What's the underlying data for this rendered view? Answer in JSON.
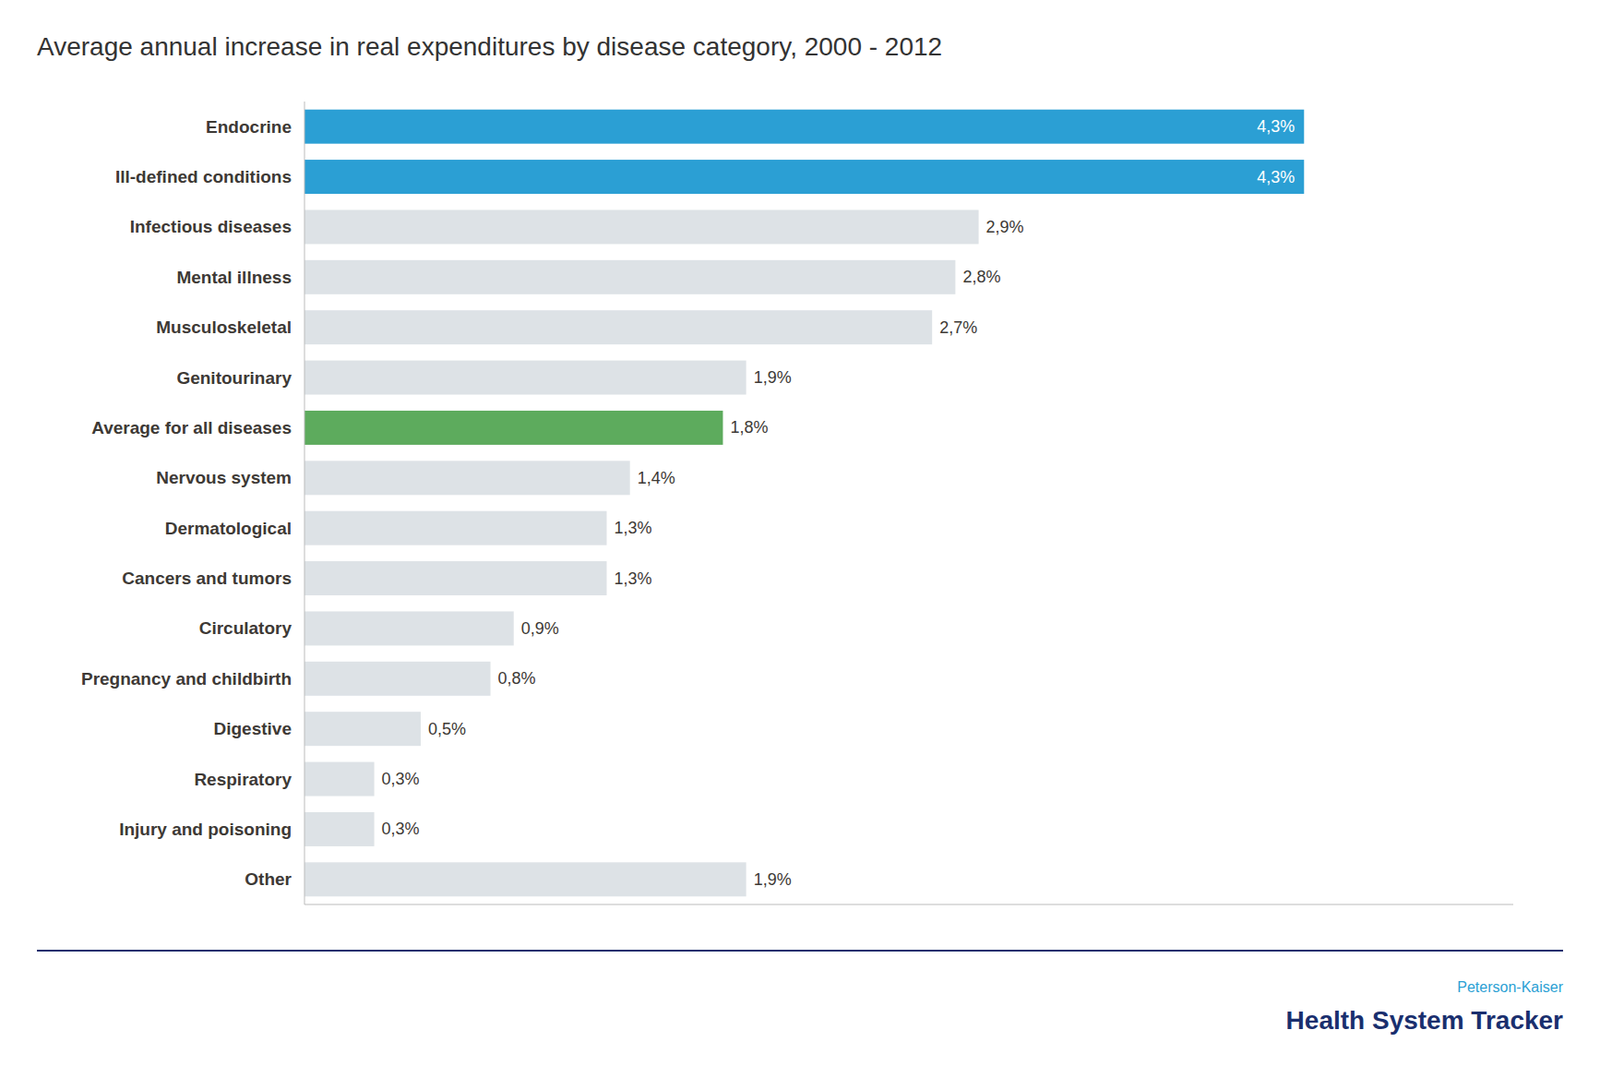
{
  "chart_data": {
    "type": "bar",
    "orientation": "horizontal",
    "title": "Average annual increase in real expenditures by disease category, 2000 - 2012",
    "annotations": [
      "Peterson-Kaiser",
      "Health System Tracker"
    ],
    "categories": [
      "Endocrine",
      "Ill-defined conditions",
      "Infectious diseases",
      "Mental illness",
      "Musculoskeletal",
      "Genitourinary",
      "Average for all diseases",
      "Nervous system",
      "Dermatological",
      "Cancers and tumors",
      "Circulatory",
      "Pregnancy and childbirth",
      "Digestive",
      "Respiratory",
      "Injury and poisoning",
      "Other"
    ],
    "values": [
      4.3,
      4.3,
      2.9,
      2.8,
      2.7,
      1.9,
      1.8,
      1.4,
      1.3,
      1.3,
      0.9,
      0.8,
      0.5,
      0.3,
      0.3,
      1.9
    ],
    "value_labels": [
      "4,3%",
      "4,3%",
      "2,9%",
      "2,8%",
      "2,7%",
      "1,9%",
      "1,8%",
      "1,4%",
      "1,3%",
      "1,3%",
      "0,9%",
      "0,8%",
      "0,5%",
      "0,3%",
      "0,3%",
      "1,9%"
    ],
    "colors": [
      "#2b9fd4",
      "#2b9fd4",
      "#dde2e6",
      "#dde2e6",
      "#dde2e6",
      "#dde2e6",
      "#5dab5d",
      "#dde2e6",
      "#dde2e6",
      "#dde2e6",
      "#dde2e6",
      "#dde2e6",
      "#dde2e6",
      "#dde2e6",
      "#dde2e6",
      "#dde2e6"
    ],
    "xlim": [
      0,
      5.2
    ],
    "grid": false,
    "data_labels": true,
    "tick_labels": "y"
  }
}
